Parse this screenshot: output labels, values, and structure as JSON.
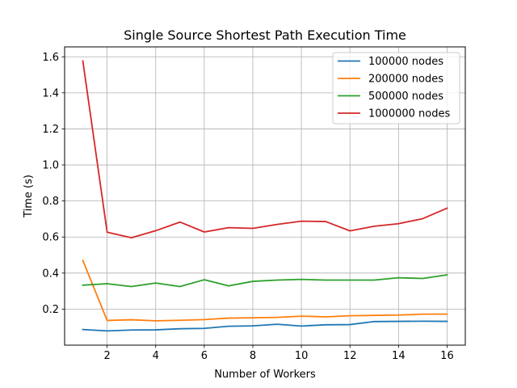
{
  "chart_data": {
    "type": "line",
    "title": "Single Source Shortest Path Execution Time",
    "xlabel": "Number of Workers",
    "ylabel": "Time (s)",
    "xlim": [
      0.25,
      16.75
    ],
    "ylim": [
      0.0,
      1.655
    ],
    "xticks": [
      2,
      4,
      6,
      8,
      10,
      12,
      14,
      16
    ],
    "xtick_labels": [
      "2",
      "4",
      "6",
      "8",
      "10",
      "12",
      "14",
      "16"
    ],
    "yticks": [
      0.2,
      0.4,
      0.6,
      0.8,
      1.0,
      1.2,
      1.4,
      1.6
    ],
    "ytick_labels": [
      "0.2",
      "0.4",
      "0.6",
      "0.8",
      "1.0",
      "1.2",
      "1.4",
      "1.6"
    ],
    "grid": true,
    "legend_position": "top-right",
    "x": [
      1,
      2,
      3,
      4,
      5,
      6,
      7,
      8,
      9,
      10,
      11,
      12,
      13,
      14,
      15,
      16
    ],
    "series": [
      {
        "name": "100000 nodes",
        "color": "#1f77b4",
        "values": [
          0.087,
          0.079,
          0.084,
          0.085,
          0.091,
          0.093,
          0.105,
          0.107,
          0.116,
          0.106,
          0.113,
          0.114,
          0.131,
          0.132,
          0.133,
          0.132
        ]
      },
      {
        "name": "200000 nodes",
        "color": "#ff7f0e",
        "values": [
          0.47,
          0.137,
          0.141,
          0.135,
          0.138,
          0.142,
          0.15,
          0.152,
          0.154,
          0.161,
          0.157,
          0.163,
          0.165,
          0.167,
          0.172,
          0.172
        ]
      },
      {
        "name": "500000 nodes",
        "color": "#2ca02c",
        "values": [
          0.333,
          0.341,
          0.325,
          0.345,
          0.325,
          0.363,
          0.329,
          0.354,
          0.361,
          0.365,
          0.361,
          0.361,
          0.361,
          0.374,
          0.37,
          0.39
        ]
      },
      {
        "name": "1000000 nodes",
        "color": "#d62728",
        "values": [
          1.577,
          0.627,
          0.596,
          0.635,
          0.683,
          0.628,
          0.652,
          0.648,
          0.67,
          0.688,
          0.686,
          0.634,
          0.66,
          0.674,
          0.702,
          0.76
        ]
      }
    ]
  }
}
